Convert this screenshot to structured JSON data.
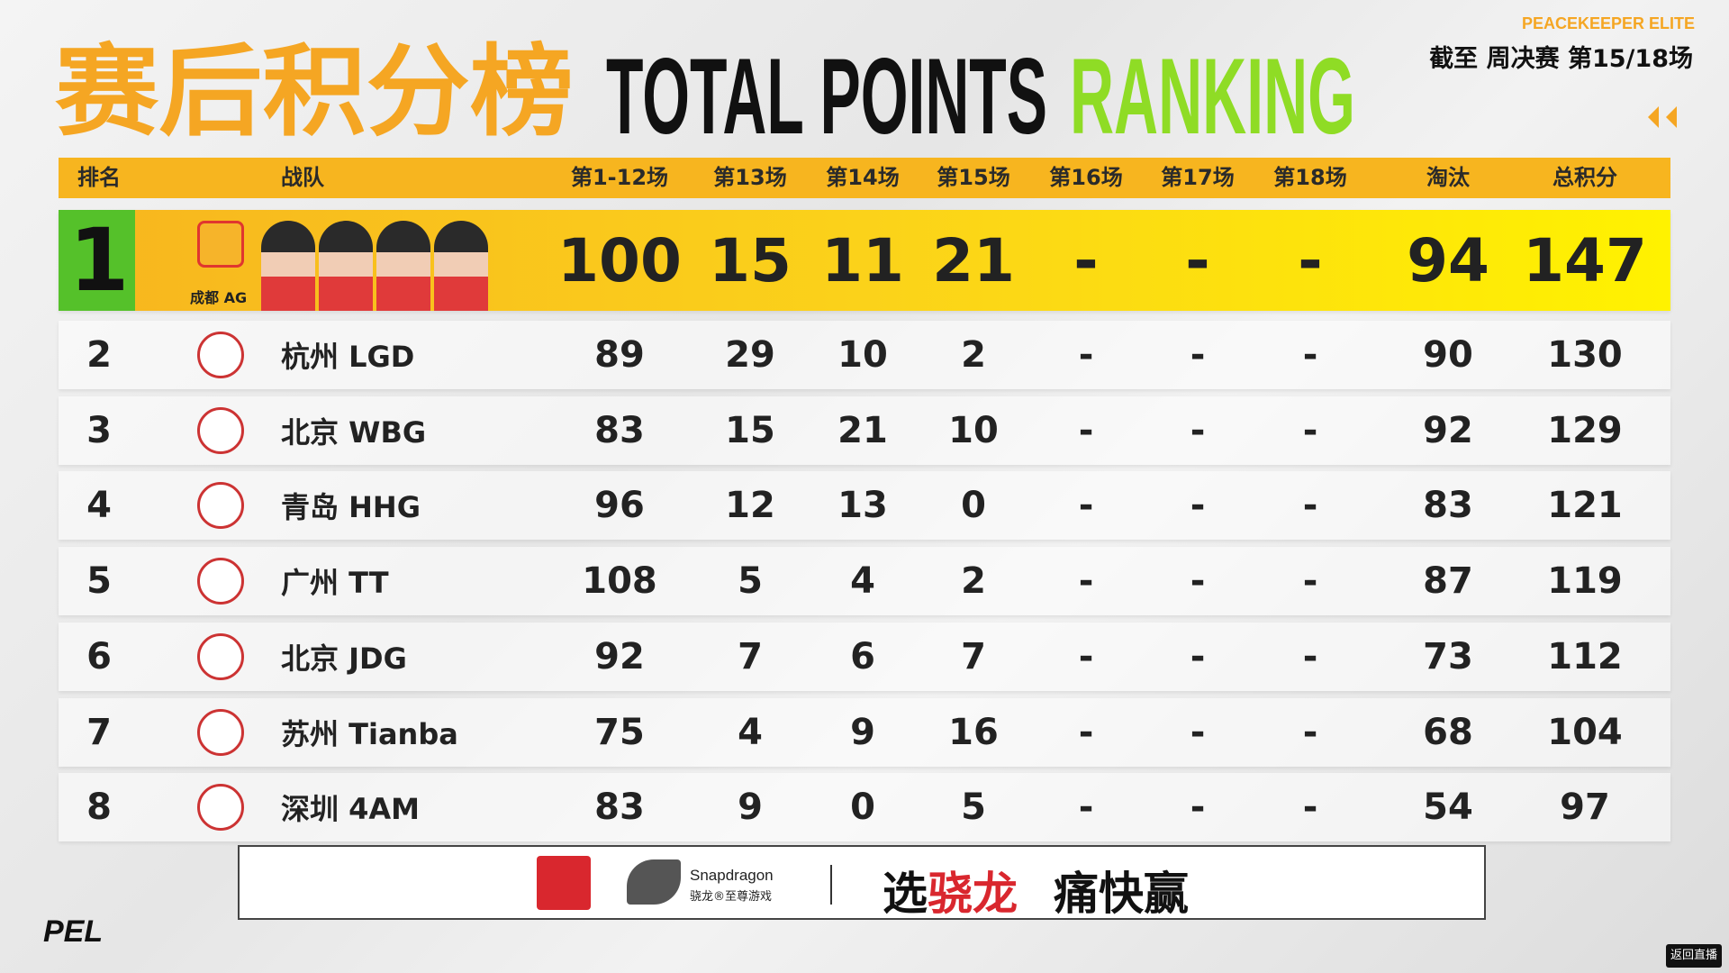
{
  "header": {
    "title_cn": "赛后积分榜",
    "title_en_1": "TOTAL POINTS",
    "title_en_2": "RANKING",
    "brand": "PEACEKEEPER ELITE",
    "subtitle": "截至 周决赛 第15/18场"
  },
  "table": {
    "columns": [
      "排名",
      "战队",
      "第1-12场",
      "第13场",
      "第14场",
      "第15场",
      "第16场",
      "第17场",
      "第18场",
      "淘汰",
      "总积分"
    ],
    "rows": [
      [
        1,
        "成都 AG",
        100,
        15,
        11,
        21,
        "-",
        "-",
        "-",
        94,
        147
      ],
      [
        2,
        "杭州 LGD",
        89,
        29,
        10,
        2,
        "-",
        "-",
        "-",
        90,
        130
      ],
      [
        3,
        "北京 WBG",
        83,
        15,
        21,
        10,
        "-",
        "-",
        "-",
        92,
        129
      ],
      [
        4,
        "青岛 HHG",
        96,
        12,
        13,
        0,
        "-",
        "-",
        "-",
        83,
        121
      ],
      [
        5,
        "广州 TT",
        108,
        5,
        4,
        2,
        "-",
        "-",
        "-",
        87,
        119
      ],
      [
        6,
        "北京 JDG",
        92,
        7,
        6,
        7,
        "-",
        "-",
        "-",
        73,
        112
      ],
      [
        7,
        "苏州 Tianba",
        75,
        4,
        9,
        16,
        "-",
        "-",
        "-",
        68,
        104
      ],
      [
        8,
        "深圳 4AM",
        83,
        9,
        0,
        5,
        "-",
        "-",
        "-",
        54,
        97
      ]
    ]
  },
  "sponsor": {
    "brand": "Snapdragon",
    "sub": "骁龙®至尊游戏",
    "slogan_1": "选",
    "slogan_2": "骁龙",
    "slogan_3": "痛快赢"
  },
  "footer": {
    "logo": "PEL",
    "button": "返回直播"
  }
}
